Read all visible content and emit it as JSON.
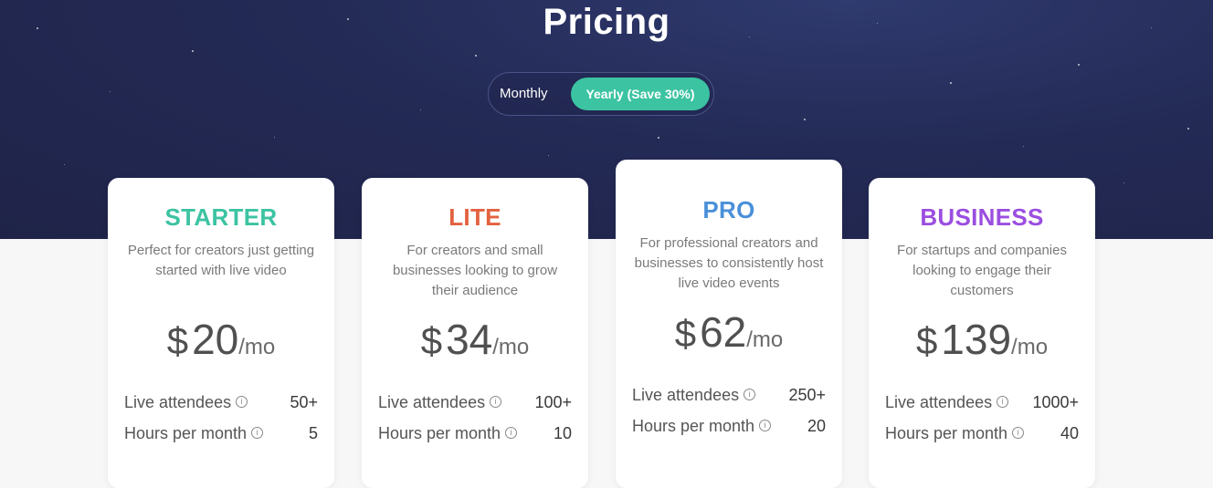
{
  "page": {
    "title": "Pricing"
  },
  "billing_toggle": {
    "monthly_label": "Monthly",
    "yearly_label": "Yearly (Save 30%)",
    "selected": "yearly"
  },
  "plans": [
    {
      "name": "STARTER",
      "color": "#3cc3a2",
      "description": "Perfect for creators just getting started with live video",
      "currency": "$",
      "amount": "20",
      "period": "/mo",
      "features": [
        {
          "label": "Live attendees",
          "value": "50+"
        },
        {
          "label": "Hours per month",
          "value": "5"
        }
      ]
    },
    {
      "name": "LITE",
      "color": "#e3613f",
      "description": "For creators and small businesses looking to grow their audience",
      "currency": "$",
      "amount": "34",
      "period": "/mo",
      "features": [
        {
          "label": "Live attendees",
          "value": "100+"
        },
        {
          "label": "Hours per month",
          "value": "10"
        }
      ]
    },
    {
      "name": "PRO",
      "color": "#4a90d9",
      "description": "For professional creators and businesses to consistently host live video events",
      "currency": "$",
      "amount": "62",
      "period": "/mo",
      "features": [
        {
          "label": "Live attendees",
          "value": "250+"
        },
        {
          "label": "Hours per month",
          "value": "20"
        }
      ]
    },
    {
      "name": "BUSINESS",
      "color": "#9b4ee0",
      "description": "For startups and companies looking to engage their customers",
      "currency": "$",
      "amount": "139",
      "period": "/mo",
      "features": [
        {
          "label": "Live attendees",
          "value": "1000+"
        },
        {
          "label": "Hours per month",
          "value": "40"
        }
      ]
    }
  ],
  "icons": {
    "feature_info": "info-circle-icon"
  }
}
